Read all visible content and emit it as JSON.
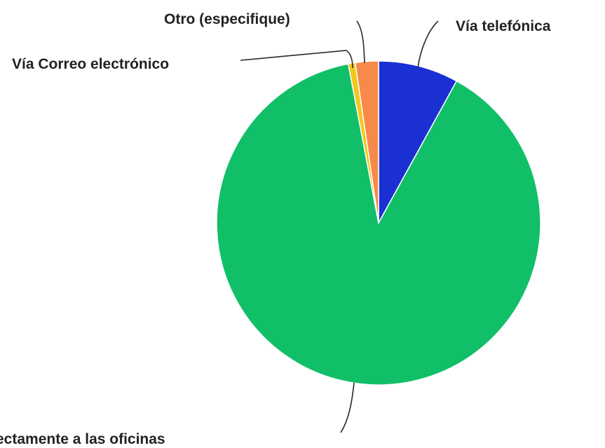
{
  "chart_data": {
    "type": "pie",
    "title": "",
    "categories": [
      "Vía telefónica",
      "Directamente a las oficinas",
      "Vía Correo electrónico",
      "Otro (especifique)"
    ],
    "values": [
      8.0,
      89.0,
      0.7,
      2.3
    ],
    "colors": [
      "#1b30d2",
      "#11bf68",
      "#f2c81b",
      "#f7894a"
    ],
    "start_angle": "12 o'clock",
    "direction": "clockwise",
    "legend": "none",
    "labels": [
      {
        "text": "Vía telefónica"
      },
      {
        "text": "ectamente a las oficinas"
      },
      {
        "text": "Vía Correo electrónico"
      },
      {
        "text": "Otro (especifique)"
      }
    ]
  }
}
